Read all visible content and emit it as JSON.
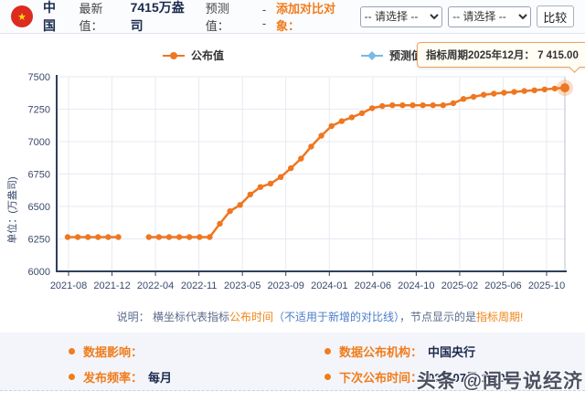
{
  "topbar": {
    "flag_icon": "china-flag",
    "country": "中国",
    "latest_label": "最新值：",
    "latest_value": "7415万盎司",
    "forecast_label": "预测值：",
    "forecast_value": "--",
    "compare_label": "添加对比对象：",
    "select1_value": "-- 请选择 --",
    "select2_value": "-- 请选择 --",
    "compare_button": "比较"
  },
  "legend": {
    "published": "公布值",
    "forecast": "预测值"
  },
  "tooltip": {
    "text": "指标周期2025年12月： 7 415.00"
  },
  "chart_data": {
    "type": "line",
    "ylabel": "单位：(万盎司)",
    "ylim": [
      6000,
      7500
    ],
    "y_ticks": [
      7500,
      7250,
      7000,
      6750,
      6500,
      6250,
      6000
    ],
    "x_ticks": [
      "2021-08",
      "2021-12",
      "2022-04",
      "2022-11",
      "2023-05",
      "2023-09",
      "2024-01",
      "2024-06",
      "2024-10",
      "2025-02",
      "2025-06",
      "2025-10"
    ],
    "grid": true,
    "legend_position": "top",
    "highlight_last": true,
    "series": [
      {
        "name": "公布值",
        "color": "#ee7720",
        "values": [
          6264,
          6264,
          6264,
          6264,
          6264,
          6264,
          null,
          null,
          6264,
          6264,
          6264,
          6264,
          6264,
          6264,
          6264,
          6367,
          6464,
          6512,
          6592,
          6650,
          6676,
          6727,
          6795,
          6869,
          6962,
          7046,
          7120,
          7158,
          7187,
          7219,
          7258,
          7274,
          7280,
          7280,
          7280,
          7280,
          7280,
          7280,
          7296,
          7329,
          7345,
          7361,
          7370,
          7377,
          7383,
          7390,
          7396,
          7402,
          7409,
          7415
        ]
      },
      {
        "name": "预测值",
        "color": "#7ab8e6",
        "values": []
      }
    ]
  },
  "note": {
    "prefix": "说明： 横坐标代表指标",
    "orange1": "公布时间",
    "blue": "（不适用于新增的对比线）",
    "mid": "，节点显示的是",
    "orange2": "指标周期!"
  },
  "info": {
    "items": [
      {
        "label": "数据影响：",
        "value": ""
      },
      {
        "label": "数据公布机构：",
        "value": "中国央行"
      },
      {
        "label": "发布频率：",
        "value": "每月"
      },
      {
        "label": "下次公布时间：",
        "value": "02月07日 16:00"
      }
    ]
  },
  "watermark": "头条 @闻号说经济",
  "colors": {
    "accent_orange": "#f07c1c",
    "series_orange": "#ee7720",
    "forecast_blue": "#7ab8e6",
    "navy_text": "#1c2b4e",
    "note_blue": "#4a7cc9",
    "flag_red": "#dd2b1f"
  }
}
